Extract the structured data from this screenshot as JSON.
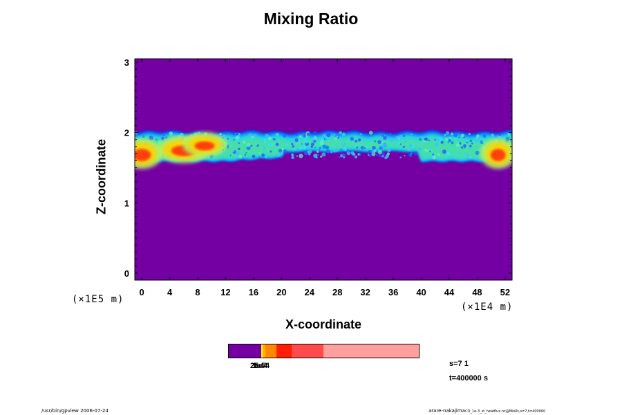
{
  "chart_data": {
    "type": "heatmap",
    "title": "Mixing Ratio",
    "xlabel": "X-coordinate",
    "ylabel": "Z-coordinate",
    "x_ticks": [
      "0",
      "4",
      "8",
      "12",
      "16",
      "20",
      "24",
      "28",
      "32",
      "36",
      "40",
      "44",
      "48",
      "52"
    ],
    "y_ticks": [
      "0",
      "1",
      "2",
      "3"
    ],
    "xlim": [
      -1,
      53
    ],
    "ylim": [
      -0.1,
      3.05
    ],
    "x_scale": "(×1E4 m)",
    "y_scale": "(×1E5 m)",
    "background_color": "#7400a4",
    "colorbar": {
      "labels": [
        "2e-5",
        "1e-4",
        "5e-4"
      ],
      "colors": [
        "#7400a4",
        "#ffff00",
        "#ffb000",
        "#ff8800",
        "#ff1e00",
        "#ff4b4b",
        "#ffa09e"
      ]
    },
    "layer": {
      "z_bottom": 1.58,
      "z_top": 2.02,
      "hotspots_x": [
        0,
        6,
        9,
        51
      ]
    }
  },
  "info": {
    "s_label": "s=7 1",
    "t_label": "t=400000 s"
  },
  "footer": {
    "left": "/usr/bin/gpview 2006-07-24",
    "right_main": "arare-nakajima",
    "right_detail": "CO_1e-3_st_heatflux.nc@MixRt,s=7,t=400000"
  }
}
